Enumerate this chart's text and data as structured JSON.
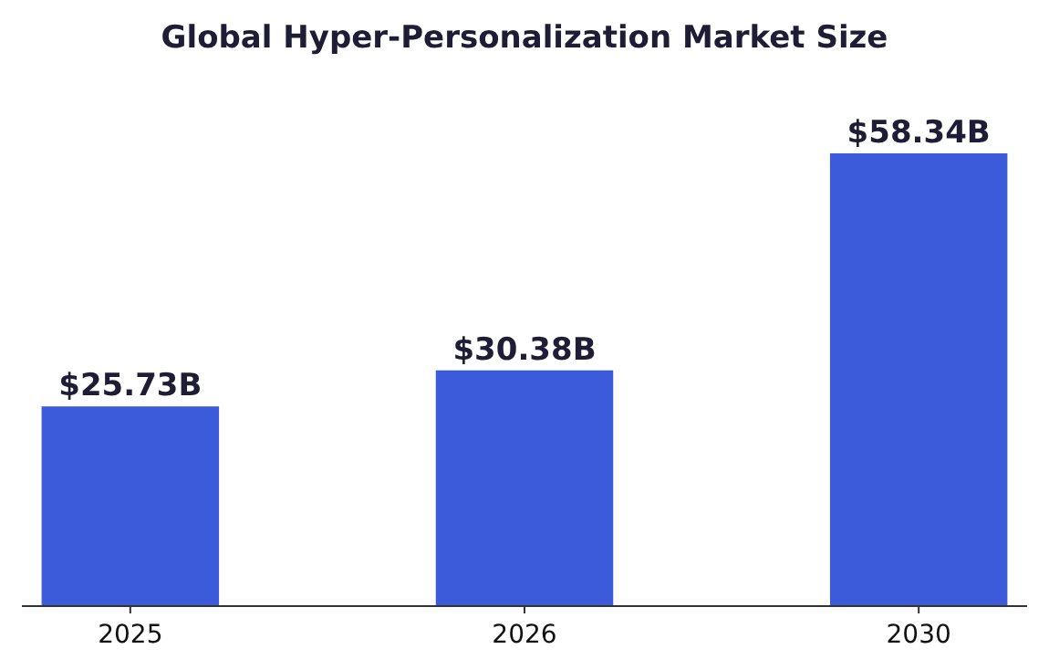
{
  "chart_data": {
    "type": "bar",
    "title": "Global Hyper-Personalization Market Size",
    "categories": [
      "2025",
      "2026",
      "2030"
    ],
    "values": [
      25.73,
      30.38,
      58.34
    ],
    "value_labels": [
      "$25.73B",
      "$30.38B",
      "$58.34B"
    ],
    "color": "#3b5bdb"
  }
}
